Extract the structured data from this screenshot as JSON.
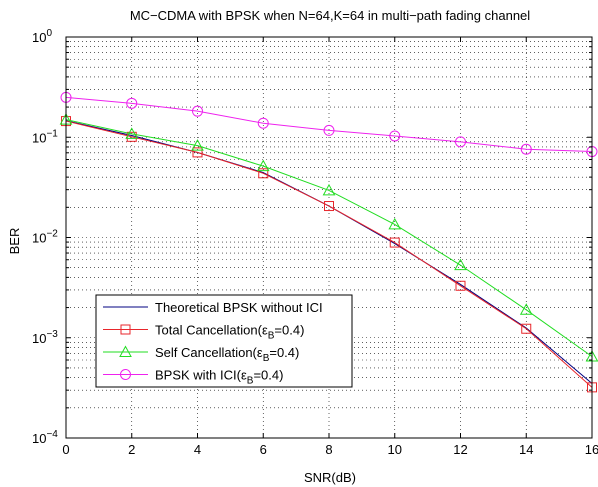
{
  "chart_data": {
    "type": "line",
    "title": "MC−CDMA with BPSK when N=64,K=64 in multi−path fading channel",
    "xlabel": "SNR(dB)",
    "ylabel": "BER",
    "y_scale": "log",
    "xlim": [
      0,
      16
    ],
    "ylim": [
      0.0001,
      1
    ],
    "grid": true,
    "legend_position": "bottom-left",
    "x_ticks": [
      0,
      2,
      4,
      6,
      8,
      10,
      12,
      14,
      16
    ],
    "x_tick_labels": [
      "0",
      "2",
      "4",
      "6",
      "8",
      "10",
      "12",
      "14",
      "16"
    ],
    "y_tick_labels": [
      {
        "base": "10",
        "exp": "0"
      },
      {
        "base": "10",
        "exp": "−1"
      },
      {
        "base": "10",
        "exp": "−2"
      },
      {
        "base": "10",
        "exp": "−3"
      },
      {
        "base": "10",
        "exp": "−4"
      }
    ],
    "x": [
      0,
      2,
      4,
      6,
      8,
      10,
      12,
      14,
      16
    ],
    "series": [
      {
        "name_parts": [
          "Theoretical BPSK without ICI"
        ],
        "color": "#000080",
        "marker": "none",
        "values": [
          0.146,
          0.104,
          0.0705,
          0.0444,
          0.0206,
          0.0087,
          0.0034,
          0.00125,
          0.00035
        ]
      },
      {
        "name_parts": [
          "Total Cancellation(",
          "ε",
          "B",
          "=0.4)"
        ],
        "color": "#e8262b",
        "marker": "square",
        "values": [
          0.145,
          0.101,
          0.0706,
          0.0437,
          0.0206,
          0.0089,
          0.0033,
          0.00123,
          0.00032
        ]
      },
      {
        "name_parts": [
          "Self Cancellation(",
          "ε",
          "B",
          "=0.4)"
        ],
        "color": "#22dd22",
        "marker": "triangle",
        "values": [
          0.15,
          0.108,
          0.0825,
          0.0515,
          0.0295,
          0.0135,
          0.0053,
          0.0019,
          0.00065
        ]
      },
      {
        "name_parts": [
          "BPSK with ICI(",
          "ε",
          "B",
          "=0.4)"
        ],
        "color": "#ee22ee",
        "marker": "circle",
        "values": [
          0.25,
          0.218,
          0.182,
          0.138,
          0.117,
          0.103,
          0.09,
          0.076,
          0.072
        ]
      }
    ]
  }
}
